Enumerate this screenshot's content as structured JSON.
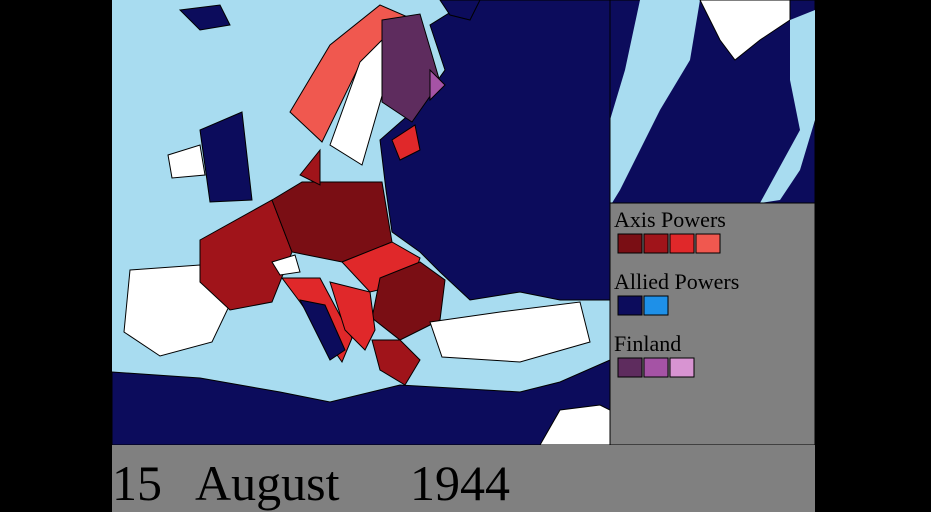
{
  "date": {
    "day": "15",
    "month": "August",
    "year": "1944"
  },
  "legend": [
    {
      "label": "Axis Powers",
      "colors": [
        "#7a0e14",
        "#a0141a",
        "#e0282a",
        "#f0584f"
      ]
    },
    {
      "label": "Allied Powers",
      "colors": [
        "#0c0c5c",
        "#1e90e8"
      ]
    },
    {
      "label": "Finland",
      "colors": [
        "#5e2c5e",
        "#a553a5",
        "#d894d2"
      ]
    }
  ]
}
